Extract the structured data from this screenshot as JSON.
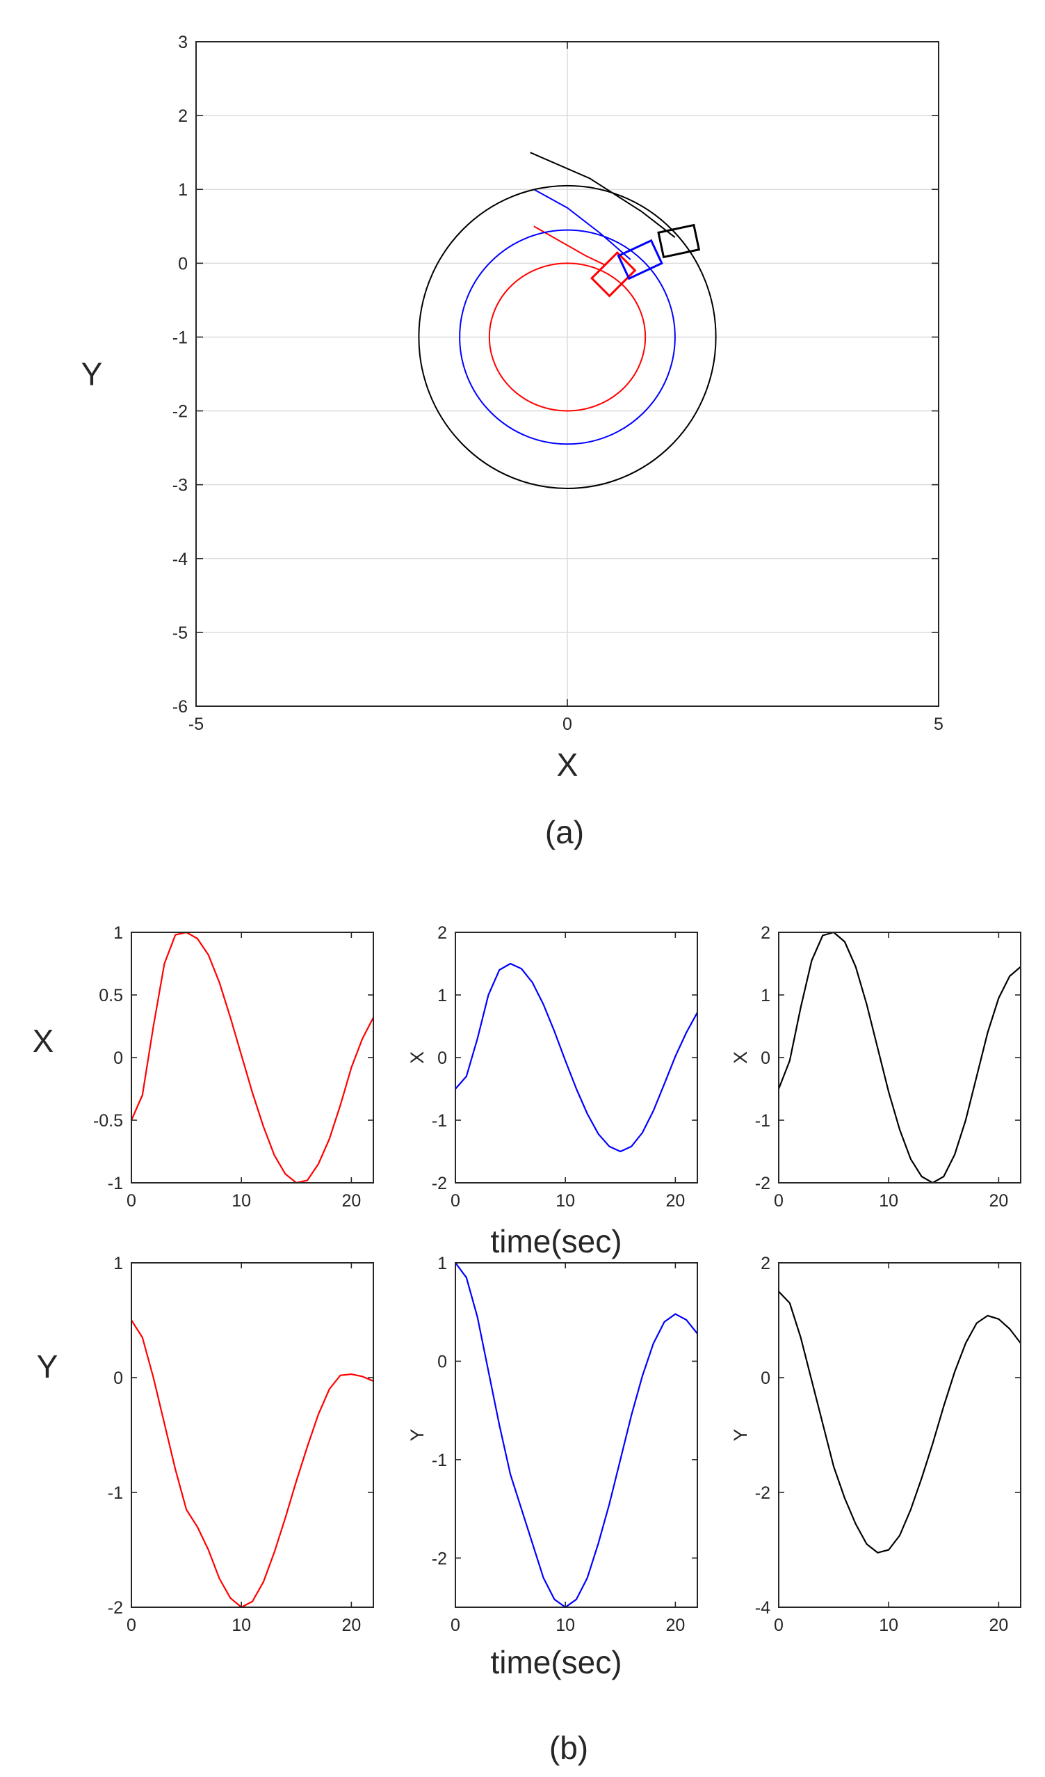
{
  "colors": {
    "red": "#ff0000",
    "blue": "#0000ff",
    "black": "#000000"
  },
  "captions": {
    "a": "(a)",
    "b": "(b)"
  },
  "row_labels": {
    "x_row": "X",
    "y_row": "Y"
  },
  "shared_xlabel": "time(sec)",
  "chart_data": [
    {
      "type": "line",
      "id": "trajectory",
      "title": "",
      "xlabel": "X",
      "ylabel": "Y",
      "xlim": [
        -5,
        5
      ],
      "ylim": [
        -6,
        3
      ],
      "xticks": [
        -5,
        0,
        5
      ],
      "yticks": [
        -6,
        -5,
        -4,
        -3,
        -2,
        -1,
        0,
        1,
        2,
        3
      ],
      "grid": true,
      "series": [
        {
          "color": "red",
          "kind": "circle_with_approach",
          "center": [
            0,
            -1
          ],
          "radius_x": 1.05,
          "radius_y": 1.0,
          "approach": [
            [
              -0.45,
              0.5
            ],
            [
              -0.1,
              0.3
            ],
            [
              0.25,
              0.1
            ],
            [
              0.5,
              -0.02
            ]
          ],
          "vehicle": {
            "x": 0.62,
            "y": -0.15,
            "heading_deg": -45
          }
        },
        {
          "color": "blue",
          "kind": "circle_with_approach",
          "center": [
            0,
            -1
          ],
          "radius_x": 1.45,
          "radius_y": 1.45,
          "approach": [
            [
              -0.45,
              1.0
            ],
            [
              0.0,
              0.75
            ],
            [
              0.45,
              0.4
            ],
            [
              0.85,
              0.05
            ]
          ],
          "vehicle": {
            "x": 0.98,
            "y": 0.05,
            "heading_deg": -25
          }
        },
        {
          "color": "black",
          "kind": "circle_with_approach",
          "center": [
            0,
            -1
          ],
          "radius_x": 2.0,
          "radius_y": 2.05,
          "approach": [
            [
              -0.5,
              1.5
            ],
            [
              0.3,
              1.15
            ],
            [
              1.0,
              0.7
            ],
            [
              1.45,
              0.35
            ]
          ],
          "vehicle": {
            "x": 1.5,
            "y": 0.3,
            "heading_deg": -12
          }
        }
      ]
    },
    {
      "type": "line",
      "id": "x-red",
      "xlabel": "",
      "ylabel": "",
      "xlim": [
        0,
        22
      ],
      "ylim": [
        -1,
        1
      ],
      "xticks": [
        0,
        10,
        20
      ],
      "yticks": [
        -1,
        -0.5,
        0,
        0.5,
        1
      ],
      "ytick_labels": [
        "-1",
        "-0.5",
        "0",
        "0.5",
        "1"
      ],
      "series": [
        {
          "color": "red",
          "x": [
            0,
            1,
            2,
            3,
            4,
            5,
            6,
            7,
            8,
            9,
            10,
            11,
            12,
            13,
            14,
            15,
            16,
            17,
            18,
            19,
            20,
            21,
            22
          ],
          "values": [
            -0.5,
            -0.3,
            0.25,
            0.75,
            0.98,
            1.0,
            0.95,
            0.82,
            0.6,
            0.32,
            0.02,
            -0.28,
            -0.55,
            -0.78,
            -0.93,
            -1.0,
            -0.98,
            -0.85,
            -0.65,
            -0.38,
            -0.08,
            0.15,
            0.32
          ]
        }
      ]
    },
    {
      "type": "line",
      "id": "x-blue",
      "xlabel": "",
      "ylabel": "X",
      "xlim": [
        0,
        22
      ],
      "ylim": [
        -2,
        2
      ],
      "xticks": [
        0,
        10,
        20
      ],
      "yticks": [
        -2,
        -1,
        0,
        1,
        2
      ],
      "ytick_labels": [
        "-2",
        "-1",
        "0",
        "1",
        "2"
      ],
      "series": [
        {
          "color": "blue",
          "x": [
            0,
            1,
            2,
            3,
            4,
            5,
            6,
            7,
            8,
            9,
            10,
            11,
            12,
            13,
            14,
            15,
            16,
            17,
            18,
            19,
            20,
            21,
            22
          ],
          "values": [
            -0.5,
            -0.3,
            0.3,
            1.0,
            1.4,
            1.5,
            1.42,
            1.2,
            0.85,
            0.42,
            -0.05,
            -0.5,
            -0.9,
            -1.22,
            -1.42,
            -1.5,
            -1.42,
            -1.2,
            -0.85,
            -0.42,
            0.02,
            0.4,
            0.72
          ]
        }
      ]
    },
    {
      "type": "line",
      "id": "x-black",
      "xlabel": "",
      "ylabel": "X",
      "xlim": [
        0,
        22
      ],
      "ylim": [
        -2,
        2
      ],
      "xticks": [
        0,
        10,
        20
      ],
      "yticks": [
        -2,
        -1,
        0,
        1,
        2
      ],
      "ytick_labels": [
        "-2",
        "-1",
        "0",
        "1",
        "2"
      ],
      "series": [
        {
          "color": "black",
          "x": [
            0,
            1,
            2,
            3,
            4,
            5,
            6,
            7,
            8,
            9,
            10,
            11,
            12,
            13,
            14,
            15,
            16,
            17,
            18,
            19,
            20,
            21,
            22
          ],
          "values": [
            -0.5,
            -0.05,
            0.8,
            1.55,
            1.95,
            2.0,
            1.85,
            1.45,
            0.85,
            0.15,
            -0.55,
            -1.15,
            -1.62,
            -1.9,
            -2.0,
            -1.9,
            -1.55,
            -1.0,
            -0.3,
            0.4,
            0.95,
            1.3,
            1.45
          ]
        }
      ]
    },
    {
      "type": "line",
      "id": "y-red",
      "xlabel": "",
      "ylabel": "",
      "xlim": [
        0,
        22
      ],
      "ylim": [
        -2,
        1
      ],
      "xticks": [
        0,
        10,
        20
      ],
      "yticks": [
        -2,
        -1,
        0,
        1
      ],
      "ytick_labels": [
        "-2",
        "-1",
        "0",
        "1"
      ],
      "series": [
        {
          "color": "red",
          "x": [
            0,
            1,
            2,
            3,
            4,
            5,
            6,
            7,
            8,
            9,
            10,
            11,
            12,
            13,
            14,
            15,
            16,
            17,
            18,
            19,
            20,
            21,
            22
          ],
          "values": [
            0.5,
            0.35,
            0.0,
            -0.4,
            -0.8,
            -1.15,
            -1.3,
            -1.5,
            -1.75,
            -1.92,
            -2.0,
            -1.95,
            -1.78,
            -1.52,
            -1.22,
            -0.9,
            -0.6,
            -0.32,
            -0.1,
            0.02,
            0.03,
            0.01,
            -0.03
          ]
        }
      ]
    },
    {
      "type": "line",
      "id": "y-blue",
      "xlabel": "",
      "ylabel": "Y",
      "xlim": [
        0,
        22
      ],
      "ylim": [
        -2.5,
        1
      ],
      "xticks": [
        0,
        10,
        20
      ],
      "yticks": [
        -2,
        -1,
        0,
        1
      ],
      "ytick_labels": [
        "-2",
        "-1",
        "0",
        "1"
      ],
      "series": [
        {
          "color": "blue",
          "x": [
            0,
            1,
            2,
            3,
            4,
            5,
            6,
            7,
            8,
            9,
            10,
            11,
            12,
            13,
            14,
            15,
            16,
            17,
            18,
            19,
            20,
            21,
            22
          ],
          "values": [
            1.0,
            0.85,
            0.45,
            -0.1,
            -0.65,
            -1.15,
            -1.5,
            -1.85,
            -2.2,
            -2.42,
            -2.5,
            -2.42,
            -2.2,
            -1.85,
            -1.45,
            -1.0,
            -0.55,
            -0.15,
            0.18,
            0.4,
            0.48,
            0.42,
            0.28
          ]
        }
      ]
    },
    {
      "type": "line",
      "id": "y-black",
      "xlabel": "",
      "ylabel": "Y",
      "xlim": [
        0,
        22
      ],
      "ylim": [
        -4,
        2
      ],
      "xticks": [
        0,
        10,
        20
      ],
      "yticks": [
        -4,
        -2,
        0,
        2
      ],
      "ytick_labels": [
        "-4",
        "-2",
        "0",
        "2"
      ],
      "series": [
        {
          "color": "black",
          "x": [
            0,
            1,
            2,
            3,
            4,
            5,
            6,
            7,
            8,
            9,
            10,
            11,
            12,
            13,
            14,
            15,
            16,
            17,
            18,
            19,
            20,
            21,
            22
          ],
          "values": [
            1.5,
            1.3,
            0.7,
            -0.05,
            -0.8,
            -1.55,
            -2.1,
            -2.55,
            -2.9,
            -3.05,
            -3.0,
            -2.75,
            -2.3,
            -1.75,
            -1.15,
            -0.5,
            0.1,
            0.6,
            0.95,
            1.08,
            1.02,
            0.85,
            0.6
          ]
        }
      ]
    }
  ]
}
